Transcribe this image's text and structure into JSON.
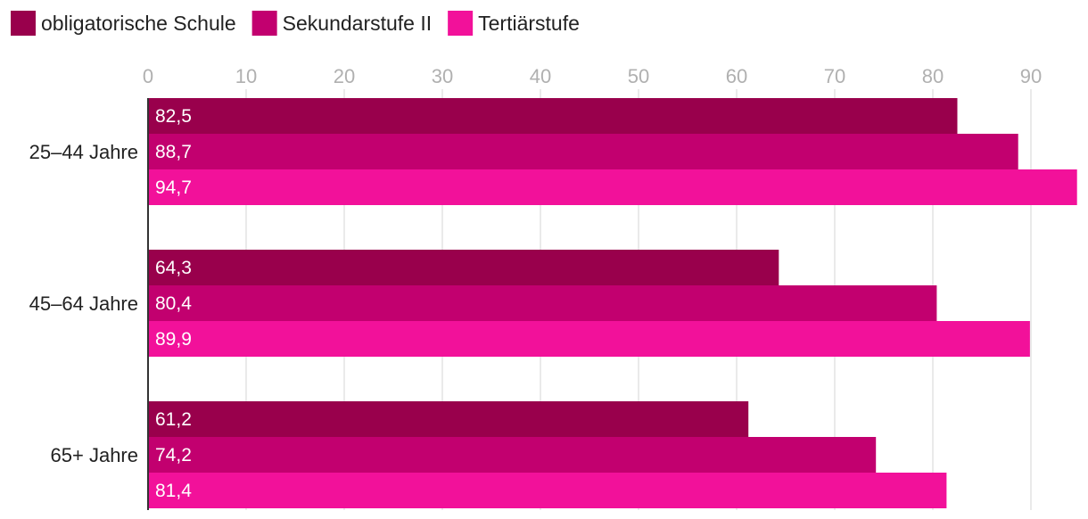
{
  "chart_data": {
    "type": "bar",
    "orientation": "horizontal",
    "title": "",
    "xlabel": "",
    "ylabel": "",
    "xlim": [
      0,
      95
    ],
    "ticks": [
      0,
      10,
      20,
      30,
      40,
      50,
      60,
      70,
      80,
      90
    ],
    "grid": true,
    "legend_position": "top-left",
    "categories": [
      "25–44 Jahre",
      "45–64 Jahre",
      "65+ Jahre"
    ],
    "series": [
      {
        "name": "obligatorische Schule",
        "color": "#99004c",
        "values": [
          82.5,
          64.3,
          61.2
        ],
        "labels": [
          "82,5",
          "64,3",
          "61,2"
        ]
      },
      {
        "name": "Sekundarstufe II",
        "color": "#c2006f",
        "values": [
          88.7,
          80.4,
          74.2
        ],
        "labels": [
          "88,7",
          "80,4",
          "74,2"
        ]
      },
      {
        "name": "Tertiärstufe",
        "color": "#f2119a",
        "values": [
          94.7,
          89.9,
          81.4
        ],
        "labels": [
          "94,7",
          "89,9",
          "81,4"
        ]
      }
    ]
  }
}
